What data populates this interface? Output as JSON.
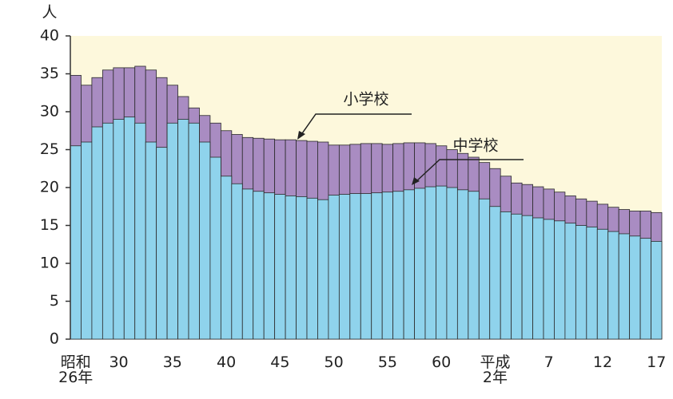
{
  "chart_data": {
    "type": "bar",
    "y_unit": "人",
    "categories": [
      "昭和\n26年",
      null,
      null,
      null,
      "30",
      null,
      null,
      null,
      null,
      "35",
      null,
      null,
      null,
      null,
      "40",
      null,
      null,
      null,
      null,
      "45",
      null,
      null,
      null,
      null,
      "50",
      null,
      null,
      null,
      null,
      "55",
      null,
      null,
      null,
      null,
      "60",
      null,
      null,
      null,
      null,
      "平成\n2年",
      null,
      null,
      null,
      null,
      "7",
      null,
      null,
      null,
      null,
      "12",
      null,
      null,
      null,
      null,
      "17"
    ],
    "series": [
      {
        "name": "小学校",
        "color": "#a98cc2",
        "values": [
          34.8,
          33.5,
          34.5,
          35.5,
          35.8,
          35.8,
          36,
          35.5,
          34.5,
          33.5,
          32,
          30.5,
          29.5,
          28.5,
          27.5,
          27,
          26.6,
          26.5,
          26.4,
          26.3,
          26.3,
          26.2,
          26.1,
          26,
          25.6,
          25.6,
          25.7,
          25.8,
          25.8,
          25.7,
          25.8,
          25.9,
          25.9,
          25.8,
          25.5,
          25,
          24.5,
          24,
          23.3,
          22.5,
          21.5,
          20.6,
          20.4,
          20.1,
          19.8,
          19.4,
          18.9,
          18.5,
          18.2,
          17.8,
          17.4,
          17.1,
          16.9,
          16.9,
          16.7
        ]
      },
      {
        "name": "中学校",
        "color": "#8fd3ec",
        "values": [
          25.5,
          26,
          28,
          28.5,
          29,
          29.3,
          28.5,
          26,
          25.3,
          28.5,
          29,
          28.5,
          26,
          24,
          21.5,
          20.5,
          19.8,
          19.5,
          19.3,
          19.1,
          18.9,
          18.8,
          18.6,
          18.4,
          19,
          19.1,
          19.2,
          19.2,
          19.3,
          19.4,
          19.5,
          19.7,
          19.9,
          20.1,
          20.2,
          20,
          19.7,
          19.5,
          18.5,
          17.5,
          16.8,
          16.5,
          16.3,
          16,
          15.8,
          15.6,
          15.3,
          15,
          14.8,
          14.5,
          14.2,
          13.9,
          13.6,
          13.3,
          12.9
        ]
      }
    ],
    "ylim": [
      0,
      40
    ],
    "yticks": [
      0,
      5,
      10,
      15,
      20,
      25,
      30,
      35,
      40
    ]
  }
}
